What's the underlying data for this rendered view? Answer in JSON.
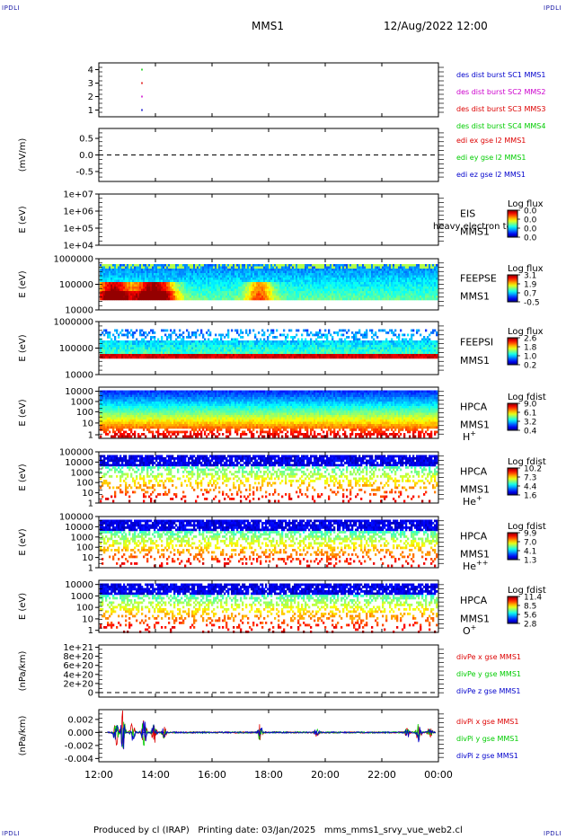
{
  "header": {
    "corner_label": "IPDLI",
    "spacecraft": "MMS1",
    "datetime": "12/Aug/2022 12:00"
  },
  "footer": {
    "text": "Produced by cl (IRAP)   Printing date: 03/Jan/2025   mms_mms1_srvy_vue_web2.cl"
  },
  "colors": {
    "mms1": "#0000cc",
    "mms2": "#cc00cc",
    "mms3": "#dd0000",
    "mms4": "#00cc00",
    "x": "#dd0000",
    "y": "#00cc00",
    "z": "#0000cc"
  },
  "chart_data": [
    {
      "type": "scatter",
      "panel": "dist-burst",
      "yticks": [
        "4",
        "3",
        "2",
        "1"
      ],
      "ylim": [
        0.5,
        4.5
      ],
      "xlim_hours": [
        12,
        24
      ],
      "series": [
        {
          "name": "des dist burst SC1 MMS1",
          "color": "#0000cc",
          "x": [
            13.5
          ],
          "y": [
            1
          ]
        },
        {
          "name": "des dist burst SC2 MMS2",
          "color": "#cc00cc",
          "x": [
            13.5
          ],
          "y": [
            2
          ]
        },
        {
          "name": "des dist burst SC3 MMS3",
          "color": "#dd0000",
          "x": [
            13.5
          ],
          "y": [
            3
          ]
        },
        {
          "name": "des dist burst SC4 MMS4",
          "color": "#00cc00",
          "x": [
            13.5
          ],
          "y": [
            4
          ]
        }
      ]
    },
    {
      "type": "line",
      "panel": "edi",
      "ylabel": "(mV/m)",
      "yticks": [
        "0.5",
        "0.0",
        "-0.5"
      ],
      "ylim": [
        -0.8,
        0.8
      ],
      "zero_line": true,
      "series": [
        {
          "name": "edi ex gse l2 MMS1",
          "color": "#dd0000"
        },
        {
          "name": "edi ey gse l2 MMS1",
          "color": "#00cc00"
        },
        {
          "name": "edi ez gse l2 MMS1",
          "color": "#0000cc"
        }
      ]
    },
    {
      "type": "heatmap",
      "panel": "eis",
      "ylabel": "E (eV)",
      "yticks": [
        "1e+07",
        "1e+06",
        "1e+05",
        "1e+04"
      ],
      "scale": "log",
      "instrument": "EIS",
      "spacecraft": "MMS1",
      "overlay_text": "heavy electron to",
      "colorbar": {
        "title": "Log flux",
        "labels": [
          "0.0",
          "0.0",
          "0.0",
          "0.0"
        ]
      },
      "empty": true
    },
    {
      "type": "heatmap",
      "panel": "feepse",
      "ylabel": "E (eV)",
      "yticks": [
        "1000000",
        "100000",
        "10000"
      ],
      "scale": "log",
      "instrument": "FEEPSE",
      "spacecraft": "MMS1",
      "colorbar": {
        "title": "Log flux",
        "labels": [
          "3.1",
          "1.9",
          "0.7",
          "-0.5"
        ]
      }
    },
    {
      "type": "heatmap",
      "panel": "feepsi",
      "ylabel": "E (eV)",
      "yticks": [
        "1000000",
        "100000",
        "10000"
      ],
      "scale": "log",
      "instrument": "FEEPSI",
      "spacecraft": "MMS1",
      "colorbar": {
        "title": "Log flux",
        "labels": [
          "2.6",
          "1.8",
          "1.0",
          "0.2"
        ]
      }
    },
    {
      "type": "heatmap",
      "panel": "hpca-h",
      "ylabel": "E (eV)",
      "yticks": [
        "10000",
        "1000",
        "100",
        "10",
        "1"
      ],
      "scale": "log",
      "instrument": "HPCA",
      "spacecraft": "MMS1",
      "species": "H",
      "species_sup": "+",
      "colorbar": {
        "title": "Log fdist",
        "labels": [
          "9.0",
          "6.1",
          "3.2",
          "0.4"
        ]
      }
    },
    {
      "type": "heatmap",
      "panel": "hpca-he",
      "ylabel": "E (eV)",
      "yticks": [
        "100000",
        "10000",
        "1000",
        "100",
        "10",
        "1"
      ],
      "scale": "log",
      "instrument": "HPCA",
      "spacecraft": "MMS1",
      "species": "He",
      "species_sup": "+",
      "colorbar": {
        "title": "Log fdist",
        "labels": [
          "10.2",
          "7.3",
          "4.4",
          "1.6"
        ]
      }
    },
    {
      "type": "heatmap",
      "panel": "hpca-he2",
      "ylabel": "E (eV)",
      "yticks": [
        "100000",
        "10000",
        "1000",
        "100",
        "10",
        "1"
      ],
      "scale": "log",
      "instrument": "HPCA",
      "spacecraft": "MMS1",
      "species": "He",
      "species_sup": "++",
      "colorbar": {
        "title": "Log fdist",
        "labels": [
          "9.9",
          "7.0",
          "4.1",
          "1.3"
        ]
      }
    },
    {
      "type": "heatmap",
      "panel": "hpca-o",
      "ylabel": "E (eV)",
      "yticks": [
        "10000",
        "1000",
        "100",
        "10",
        "1"
      ],
      "scale": "log",
      "instrument": "HPCA",
      "spacecraft": "MMS1",
      "species": "O",
      "species_sup": "+",
      "colorbar": {
        "title": "Log fdist",
        "labels": [
          "11.4",
          "8.5",
          "5.6",
          "2.8"
        ]
      }
    },
    {
      "type": "line",
      "panel": "divpe",
      "ylabel": "(nPa/km)",
      "yticks": [
        "1e+21",
        "8e+20",
        "6e+20",
        "4e+20",
        "2e+20",
        "0"
      ],
      "ylim": [
        -1e+20,
        1.05e+21
      ],
      "zero_line": true,
      "series": [
        {
          "name": "divPe x gse MMS1",
          "color": "#dd0000"
        },
        {
          "name": "divPe y gse MMS1",
          "color": "#00cc00"
        },
        {
          "name": "divPe z gse MMS1",
          "color": "#0000cc"
        }
      ]
    },
    {
      "type": "line",
      "panel": "divpi",
      "ylabel": "(nPa/km)",
      "yticks": [
        "0.002",
        "0.000",
        "-0.002",
        "-0.004"
      ],
      "ylim": [
        -0.0045,
        0.0035
      ],
      "series": [
        {
          "name": "divPi x gse MMS1",
          "color": "#dd0000"
        },
        {
          "name": "divPi y gse MMS1",
          "color": "#00cc00"
        },
        {
          "name": "divPi z gse MMS1",
          "color": "#0000cc"
        }
      ],
      "xticks": [
        "12:00",
        "14:00",
        "16:00",
        "18:00",
        "20:00",
        "22:00",
        "00:00"
      ]
    }
  ]
}
